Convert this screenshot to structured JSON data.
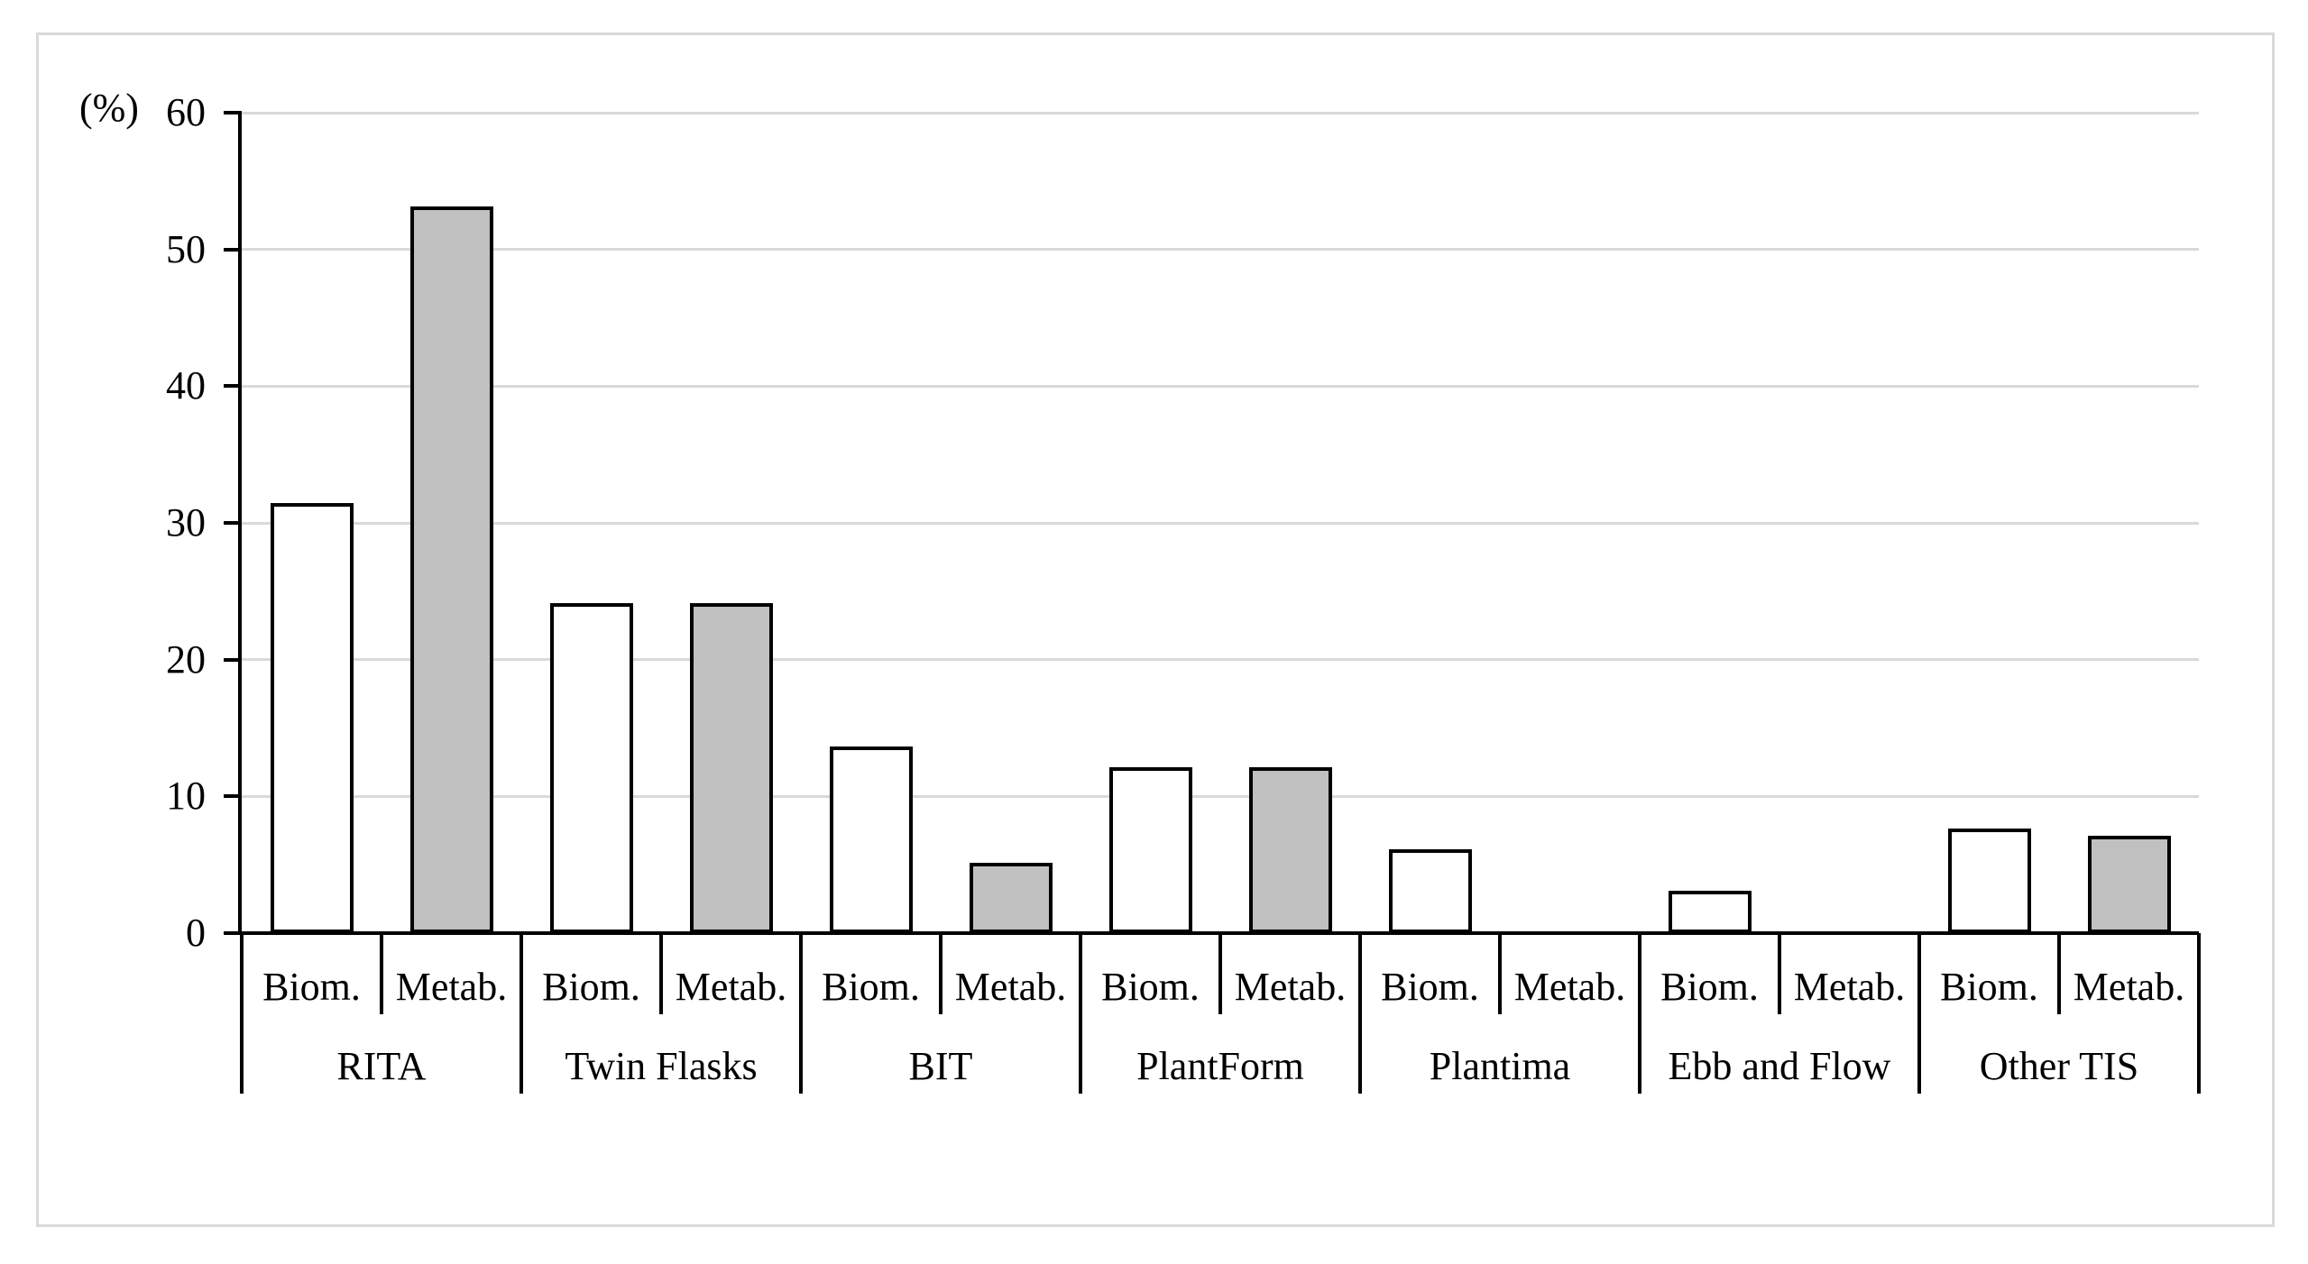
{
  "chart_data": {
    "type": "bar",
    "title": "",
    "unit_label": "(%)",
    "xlabel": "",
    "ylabel": "(%)",
    "ylim": [
      0,
      60
    ],
    "yticks": [
      0,
      10,
      20,
      30,
      40,
      50,
      60
    ],
    "grid": true,
    "legend_position": "none",
    "categories": [
      "RITA",
      "Twin Flasks",
      "BIT",
      "PlantForm",
      "Plantima",
      "Ebb and Flow",
      "Other TIS"
    ],
    "category_ids": [
      "rita",
      "twin-flasks",
      "bit",
      "plantform",
      "plantima",
      "ebb-and-flow",
      "other-tis"
    ],
    "sub_categories": [
      "Biom.",
      "Metab."
    ],
    "sub_category_ids": [
      "biom",
      "metab"
    ],
    "series": [
      {
        "name": "Biom.",
        "fill": "#ffffff",
        "values": [
          31.3,
          24,
          13.5,
          12,
          6,
          3,
          7.5
        ]
      },
      {
        "name": "Metab.",
        "fill": "#c0c0c0",
        "values": [
          53,
          24,
          5,
          12,
          0,
          0,
          7
        ]
      }
    ],
    "bar_border_color": "#000000",
    "gridline_color": "#d9d9d9",
    "figure_border_color": "#d9d9d9"
  }
}
